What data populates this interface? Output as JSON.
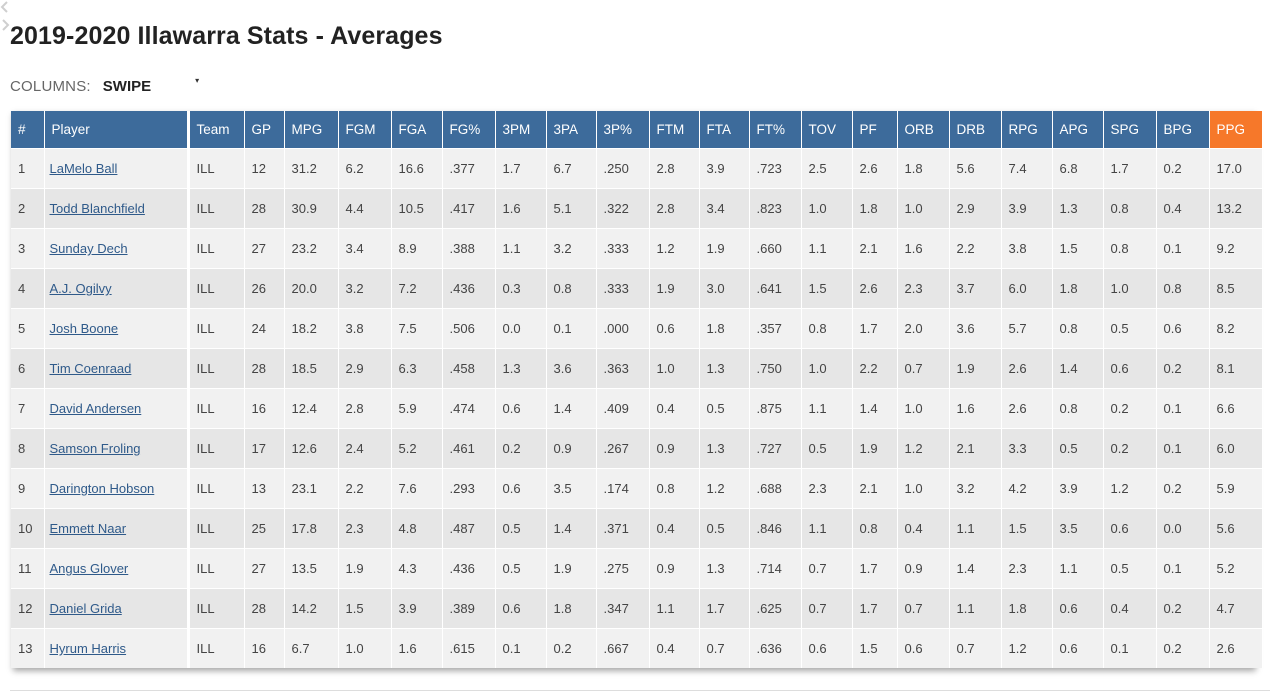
{
  "page": {
    "title": "2019-2020 Illawarra Stats - Averages"
  },
  "controls": {
    "columns_label": "COLUMNS:",
    "columns_value": "SWIPE",
    "caret": "▾",
    "prev_icon": "chevron-left-icon",
    "next_icon": "chevron-right-icon"
  },
  "colors": {
    "header": "#3d6b9b",
    "highlight": "#f6782a",
    "link": "#2f5a8a"
  },
  "table": {
    "headers": [
      "#",
      "Player",
      "Team",
      "GP",
      "MPG",
      "FGM",
      "FGA",
      "FG%",
      "3PM",
      "3PA",
      "3P%",
      "FTM",
      "FTA",
      "FT%",
      "TOV",
      "PF",
      "ORB",
      "DRB",
      "RPG",
      "APG",
      "SPG",
      "BPG",
      "PPG"
    ],
    "highlight_column": "PPG",
    "rows": [
      [
        "1",
        "LaMelo Ball",
        "ILL",
        "12",
        "31.2",
        "6.2",
        "16.6",
        ".377",
        "1.7",
        "6.7",
        ".250",
        "2.8",
        "3.9",
        ".723",
        "2.5",
        "2.6",
        "1.8",
        "5.6",
        "7.4",
        "6.8",
        "1.7",
        "0.2",
        "17.0"
      ],
      [
        "2",
        "Todd Blanchfield",
        "ILL",
        "28",
        "30.9",
        "4.4",
        "10.5",
        ".417",
        "1.6",
        "5.1",
        ".322",
        "2.8",
        "3.4",
        ".823",
        "1.0",
        "1.8",
        "1.0",
        "2.9",
        "3.9",
        "1.3",
        "0.8",
        "0.4",
        "13.2"
      ],
      [
        "3",
        "Sunday Dech",
        "ILL",
        "27",
        "23.2",
        "3.4",
        "8.9",
        ".388",
        "1.1",
        "3.2",
        ".333",
        "1.2",
        "1.9",
        ".660",
        "1.1",
        "2.1",
        "1.6",
        "2.2",
        "3.8",
        "1.5",
        "0.8",
        "0.1",
        "9.2"
      ],
      [
        "4",
        "A.J. Ogilvy",
        "ILL",
        "26",
        "20.0",
        "3.2",
        "7.2",
        ".436",
        "0.3",
        "0.8",
        ".333",
        "1.9",
        "3.0",
        ".641",
        "1.5",
        "2.6",
        "2.3",
        "3.7",
        "6.0",
        "1.8",
        "1.0",
        "0.8",
        "8.5"
      ],
      [
        "5",
        "Josh Boone",
        "ILL",
        "24",
        "18.2",
        "3.8",
        "7.5",
        ".506",
        "0.0",
        "0.1",
        ".000",
        "0.6",
        "1.8",
        ".357",
        "0.8",
        "1.7",
        "2.0",
        "3.6",
        "5.7",
        "0.8",
        "0.5",
        "0.6",
        "8.2"
      ],
      [
        "6",
        "Tim Coenraad",
        "ILL",
        "28",
        "18.5",
        "2.9",
        "6.3",
        ".458",
        "1.3",
        "3.6",
        ".363",
        "1.0",
        "1.3",
        ".750",
        "1.0",
        "2.2",
        "0.7",
        "1.9",
        "2.6",
        "1.4",
        "0.6",
        "0.2",
        "8.1"
      ],
      [
        "7",
        "David Andersen",
        "ILL",
        "16",
        "12.4",
        "2.8",
        "5.9",
        ".474",
        "0.6",
        "1.4",
        ".409",
        "0.4",
        "0.5",
        ".875",
        "1.1",
        "1.4",
        "1.0",
        "1.6",
        "2.6",
        "0.8",
        "0.2",
        "0.1",
        "6.6"
      ],
      [
        "8",
        "Samson Froling",
        "ILL",
        "17",
        "12.6",
        "2.4",
        "5.2",
        ".461",
        "0.2",
        "0.9",
        ".267",
        "0.9",
        "1.3",
        ".727",
        "0.5",
        "1.9",
        "1.2",
        "2.1",
        "3.3",
        "0.5",
        "0.2",
        "0.1",
        "6.0"
      ],
      [
        "9",
        "Darington Hobson",
        "ILL",
        "13",
        "23.1",
        "2.2",
        "7.6",
        ".293",
        "0.6",
        "3.5",
        ".174",
        "0.8",
        "1.2",
        ".688",
        "2.3",
        "2.1",
        "1.0",
        "3.2",
        "4.2",
        "3.9",
        "1.2",
        "0.2",
        "5.9"
      ],
      [
        "10",
        "Emmett Naar",
        "ILL",
        "25",
        "17.8",
        "2.3",
        "4.8",
        ".487",
        "0.5",
        "1.4",
        ".371",
        "0.4",
        "0.5",
        ".846",
        "1.1",
        "0.8",
        "0.4",
        "1.1",
        "1.5",
        "3.5",
        "0.6",
        "0.0",
        "5.6"
      ],
      [
        "11",
        "Angus Glover",
        "ILL",
        "27",
        "13.5",
        "1.9",
        "4.3",
        ".436",
        "0.5",
        "1.9",
        ".275",
        "0.9",
        "1.3",
        ".714",
        "0.7",
        "1.7",
        "0.9",
        "1.4",
        "2.3",
        "1.1",
        "0.5",
        "0.1",
        "5.2"
      ],
      [
        "12",
        "Daniel Grida",
        "ILL",
        "28",
        "14.2",
        "1.5",
        "3.9",
        ".389",
        "0.6",
        "1.8",
        ".347",
        "1.1",
        "1.7",
        ".625",
        "0.7",
        "1.7",
        "0.7",
        "1.1",
        "1.8",
        "0.6",
        "0.4",
        "0.2",
        "4.7"
      ],
      [
        "13",
        "Hyrum Harris",
        "ILL",
        "16",
        "6.7",
        "1.0",
        "1.6",
        ".615",
        "0.1",
        "0.2",
        ".667",
        "0.4",
        "0.7",
        ".636",
        "0.6",
        "1.5",
        "0.6",
        "0.7",
        "1.2",
        "0.6",
        "0.1",
        "0.2",
        "2.6"
      ]
    ]
  }
}
